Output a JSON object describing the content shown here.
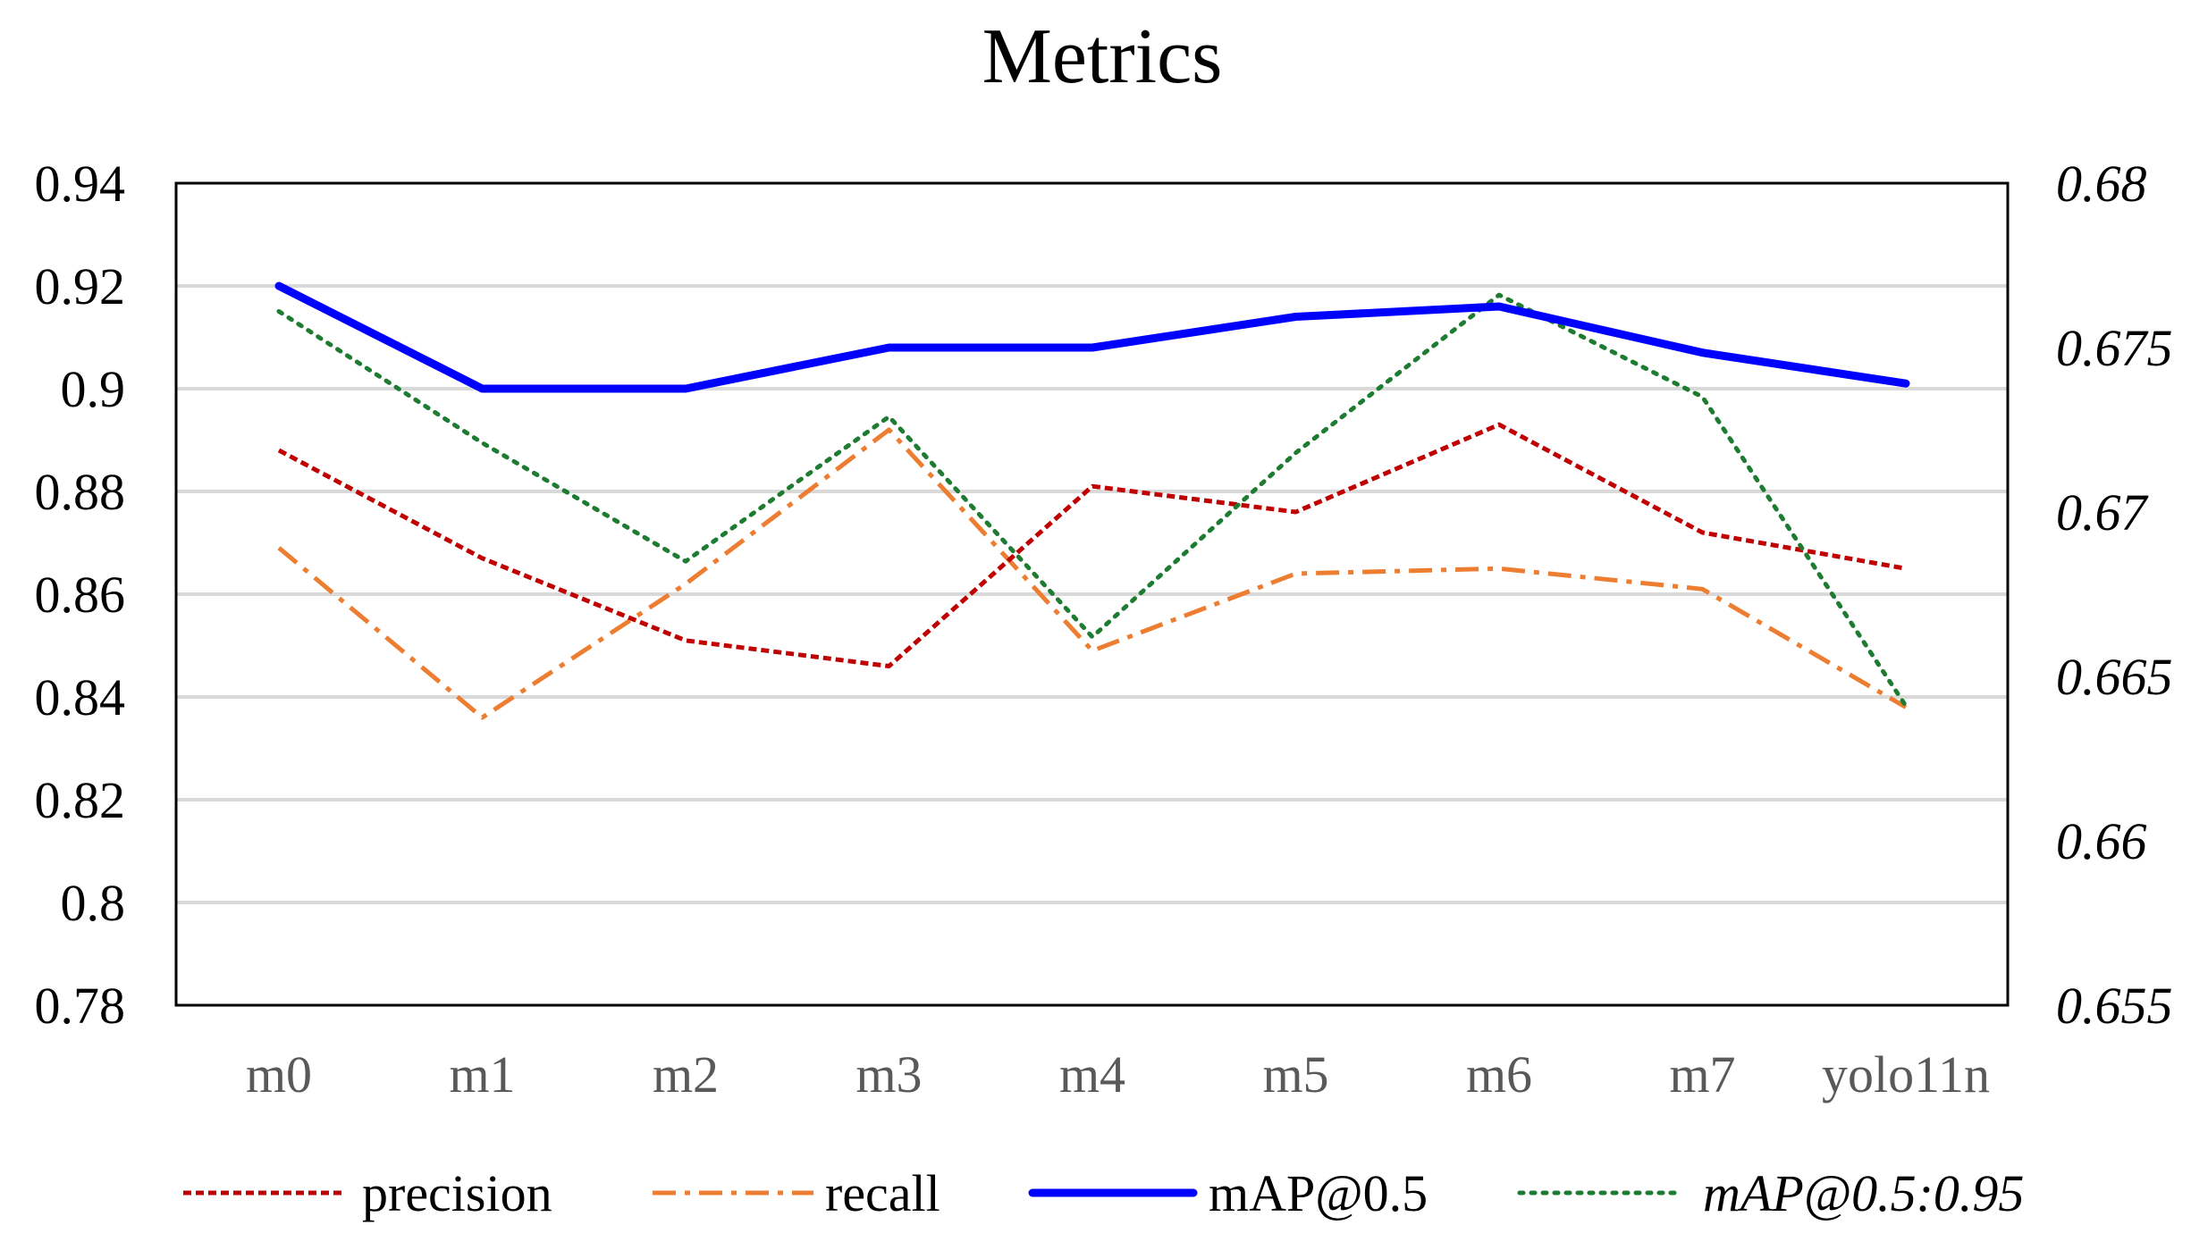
{
  "chart_data": {
    "type": "line",
    "title": "Metrics",
    "categories": [
      "m0",
      "m1",
      "m2",
      "m3",
      "m4",
      "m5",
      "m6",
      "m7",
      "yolo11n"
    ],
    "y_left": {
      "min": 0.78,
      "max": 0.94,
      "ticks": [
        "0.78",
        "0.8",
        "0.82",
        "0.84",
        "0.86",
        "0.88",
        "0.9",
        "0.92",
        "0.94"
      ]
    },
    "y_right": {
      "min": 0.655,
      "max": 0.68,
      "ticks": [
        "0.655",
        "0.66",
        "0.665",
        "0.67",
        "0.675",
        "0.68"
      ]
    },
    "grid": true,
    "legend_position": "bottom",
    "series": [
      {
        "name": "precision",
        "axis": "left",
        "color": "#C00000",
        "style": "dotted",
        "values": [
          0.888,
          0.867,
          0.851,
          0.846,
          0.881,
          0.876,
          0.893,
          0.872,
          0.865
        ]
      },
      {
        "name": "recall",
        "axis": "left",
        "color": "#ED7D31",
        "style": "dashdot",
        "values": [
          0.869,
          0.836,
          0.862,
          0.892,
          0.849,
          0.864,
          0.865,
          0.861,
          0.838
        ]
      },
      {
        "name": "mAP@0.5",
        "axis": "left",
        "color": "#0000FF",
        "style": "solid",
        "values": [
          0.92,
          0.9,
          0.9,
          0.908,
          0.908,
          0.914,
          0.916,
          0.907,
          0.901
        ]
      },
      {
        "name": "mAP@0.5:0.95",
        "axis": "right",
        "color": "#1E7B32",
        "style": "dotted2",
        "italic": true,
        "values": [
          0.6761,
          0.6721,
          0.6685,
          0.6729,
          0.6662,
          0.6718,
          0.6766,
          0.6735,
          0.6641
        ]
      }
    ]
  }
}
